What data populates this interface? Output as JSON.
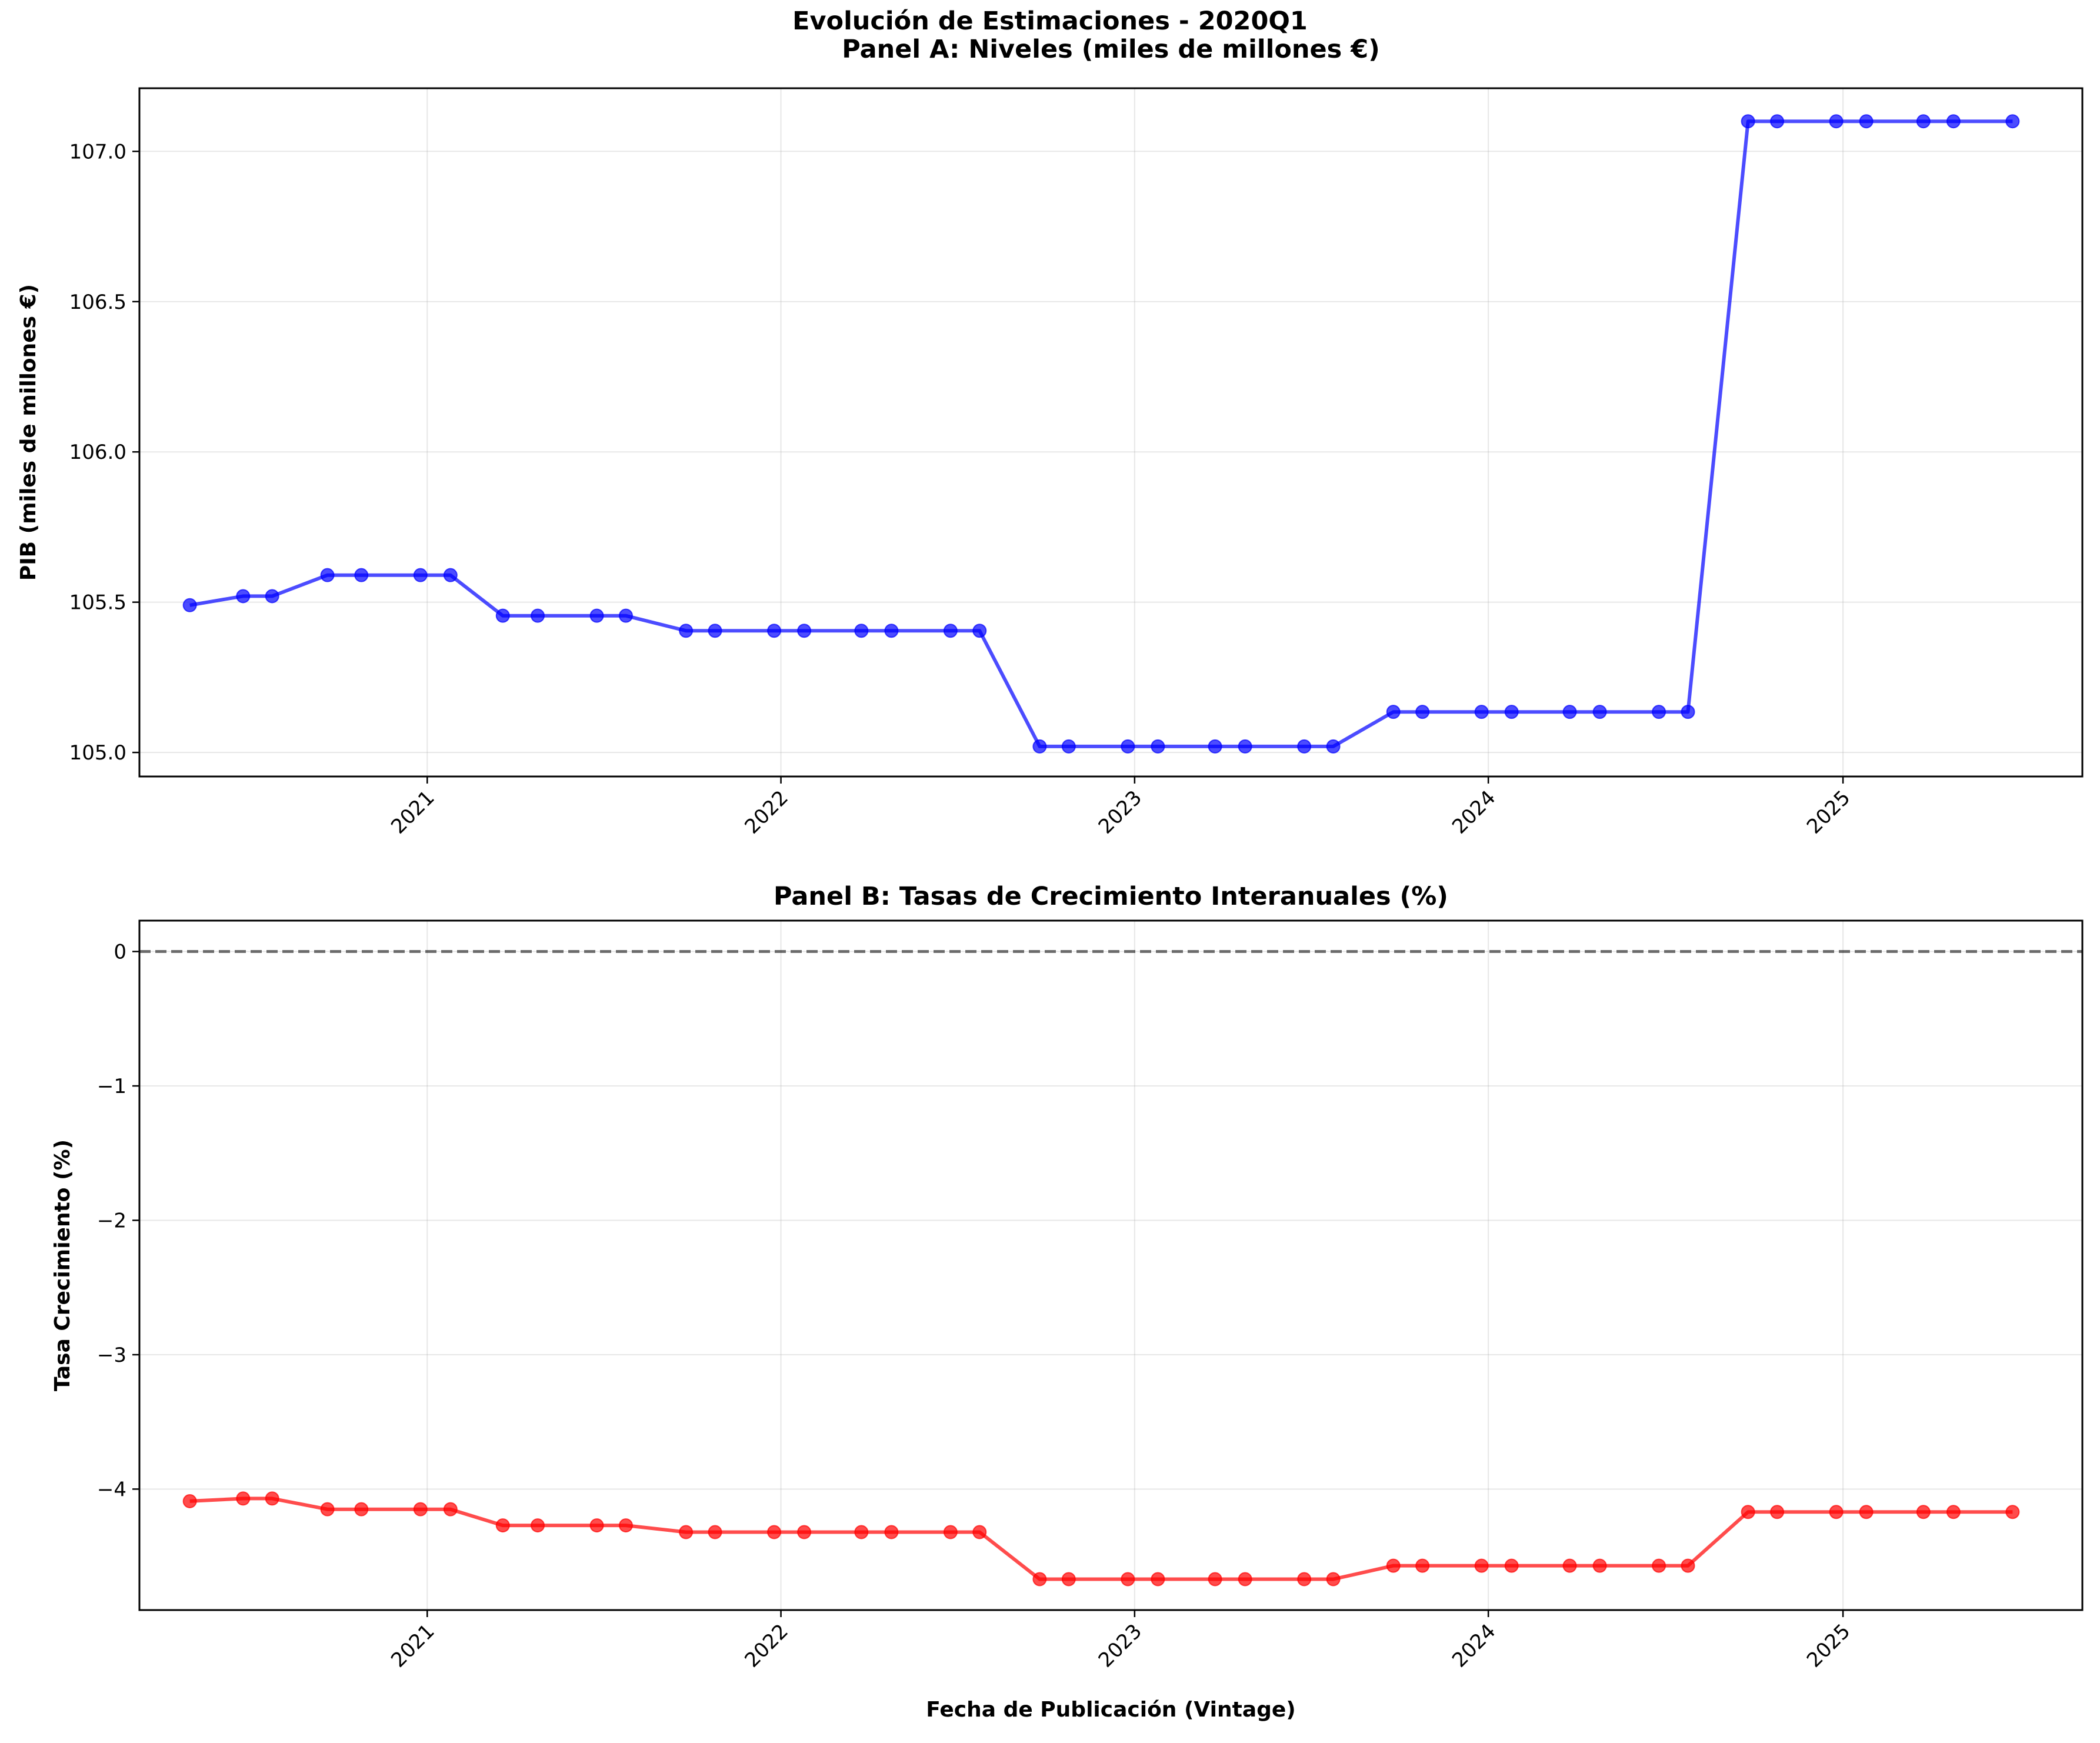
{
  "suptitle": "Evolución de Estimaciones - 2020Q1",
  "chart_data": [
    {
      "type": "line",
      "title": "Panel A: Niveles (miles de millones €)",
      "xlabel": "",
      "ylabel": "PIB (miles de millones €)",
      "ylim": [
        104.92,
        107.21
      ],
      "yticks": [
        105.0,
        105.5,
        106.0,
        106.5,
        107.0
      ],
      "ytick_labels": [
        "105.0",
        "105.5",
        "106.0",
        "106.5",
        "107.0"
      ],
      "xlim": [
        "2020-03-10",
        "2025-09-05"
      ],
      "xticks": [
        "2021-01-01",
        "2022-01-01",
        "2023-01-01",
        "2024-01-01",
        "2025-01-01"
      ],
      "xtick_labels": [
        "2021",
        "2022",
        "2023",
        "2024",
        "2025"
      ],
      "grid": true,
      "color": "#0000ff",
      "x": [
        "2020-05-01",
        "2020-06-25",
        "2020-07-25",
        "2020-09-20",
        "2020-10-25",
        "2020-12-25",
        "2021-01-25",
        "2021-03-20",
        "2021-04-25",
        "2021-06-25",
        "2021-07-25",
        "2021-09-25",
        "2021-10-25",
        "2021-12-25",
        "2022-01-25",
        "2022-03-25",
        "2022-04-25",
        "2022-06-25",
        "2022-07-25",
        "2022-09-25",
        "2022-10-25",
        "2022-12-25",
        "2023-01-25",
        "2023-03-25",
        "2023-04-25",
        "2023-06-25",
        "2023-07-25",
        "2023-09-25",
        "2023-10-25",
        "2023-12-25",
        "2024-01-25",
        "2024-03-25",
        "2024-04-25",
        "2024-06-25",
        "2024-07-25",
        "2024-09-25",
        "2024-10-25",
        "2024-12-25",
        "2025-01-25",
        "2025-03-25",
        "2025-04-25",
        "2025-06-25"
      ],
      "y": [
        105.49,
        105.52,
        105.52,
        105.59,
        105.59,
        105.59,
        105.59,
        105.455,
        105.455,
        105.455,
        105.455,
        105.405,
        105.405,
        105.405,
        105.405,
        105.405,
        105.405,
        105.405,
        105.405,
        105.02,
        105.02,
        105.02,
        105.02,
        105.02,
        105.02,
        105.02,
        105.02,
        105.135,
        105.135,
        105.135,
        105.135,
        105.135,
        105.135,
        105.135,
        105.135,
        107.1,
        107.1,
        107.1,
        107.1,
        107.1,
        107.1,
        107.1
      ]
    },
    {
      "type": "line",
      "title": "Panel B: Tasas de Crecimiento Interanuales (%)",
      "xlabel": "Fecha de Publicación (Vintage)",
      "ylabel": "Tasa Crecimiento (%)",
      "ylim": [
        -4.9,
        0.23
      ],
      "yticks": [
        -4,
        -3,
        -2,
        -1,
        0
      ],
      "ytick_labels": [
        "−4",
        "−3",
        "−2",
        "−1",
        "0"
      ],
      "xlim": [
        "2020-03-10",
        "2025-09-05"
      ],
      "xticks": [
        "2021-01-01",
        "2022-01-01",
        "2023-01-01",
        "2024-01-01",
        "2025-01-01"
      ],
      "xtick_labels": [
        "2021",
        "2022",
        "2023",
        "2024",
        "2025"
      ],
      "grid": true,
      "color": "#ff0000",
      "reference_line": 0,
      "x": [
        "2020-05-01",
        "2020-06-25",
        "2020-07-25",
        "2020-09-20",
        "2020-10-25",
        "2020-12-25",
        "2021-01-25",
        "2021-03-20",
        "2021-04-25",
        "2021-06-25",
        "2021-07-25",
        "2021-09-25",
        "2021-10-25",
        "2021-12-25",
        "2022-01-25",
        "2022-03-25",
        "2022-04-25",
        "2022-06-25",
        "2022-07-25",
        "2022-09-25",
        "2022-10-25",
        "2022-12-25",
        "2023-01-25",
        "2023-03-25",
        "2023-04-25",
        "2023-06-25",
        "2023-07-25",
        "2023-09-25",
        "2023-10-25",
        "2023-12-25",
        "2024-01-25",
        "2024-03-25",
        "2024-04-25",
        "2024-06-25",
        "2024-07-25",
        "2024-09-25",
        "2024-10-25",
        "2024-12-25",
        "2025-01-25",
        "2025-03-25",
        "2025-04-25",
        "2025-06-25"
      ],
      "y": [
        -4.09,
        -4.07,
        -4.07,
        -4.15,
        -4.15,
        -4.15,
        -4.15,
        -4.27,
        -4.27,
        -4.27,
        -4.27,
        -4.32,
        -4.32,
        -4.32,
        -4.32,
        -4.32,
        -4.32,
        -4.32,
        -4.32,
        -4.67,
        -4.67,
        -4.67,
        -4.67,
        -4.67,
        -4.67,
        -4.67,
        -4.67,
        -4.57,
        -4.57,
        -4.57,
        -4.57,
        -4.57,
        -4.57,
        -4.57,
        -4.57,
        -4.17,
        -4.17,
        -4.17,
        -4.17,
        -4.17,
        -4.17,
        -4.17
      ]
    }
  ]
}
